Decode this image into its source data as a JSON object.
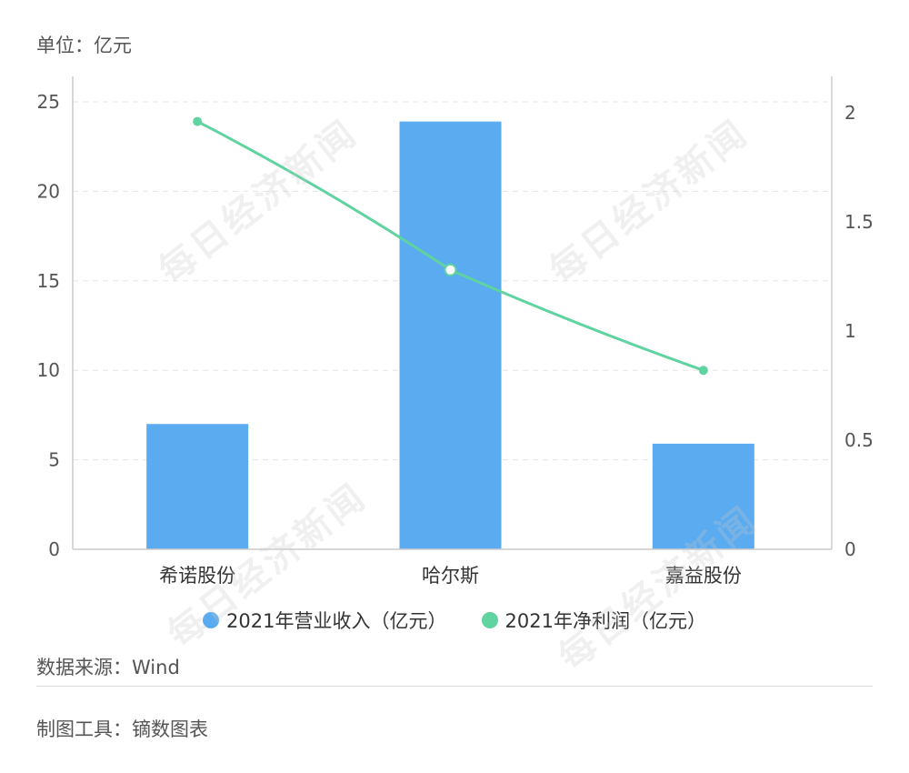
{
  "unit_label": "单位：亿元",
  "source": "数据来源：Wind",
  "tool": "制图工具：镝数图表",
  "watermark": "每日经济新闻",
  "colors": {
    "bar": "#5aabf0",
    "line": "#5fd3a0",
    "grid": "#e5e5e5",
    "axis": "#cccccc"
  },
  "chart_data": {
    "type": "bar",
    "categories": [
      "希诺股份",
      "哈尔斯",
      "嘉益股份"
    ],
    "series": [
      {
        "name": "2021年营业收入（亿元）",
        "type": "bar",
        "axis": "left",
        "values": [
          7.0,
          23.9,
          5.9
        ]
      },
      {
        "name": "2021年净利润（亿元）",
        "type": "line",
        "axis": "right",
        "values": [
          1.96,
          1.28,
          0.82
        ]
      }
    ],
    "y_left": {
      "min": 0,
      "max": 25,
      "ticks": [
        "0",
        "5",
        "10",
        "15",
        "20",
        "25"
      ]
    },
    "y_right": {
      "min": 0,
      "max": 2,
      "ticks": [
        "0",
        "0.5",
        "1",
        "1.5",
        "2"
      ]
    },
    "grid": true,
    "legend_position": "bottom"
  }
}
